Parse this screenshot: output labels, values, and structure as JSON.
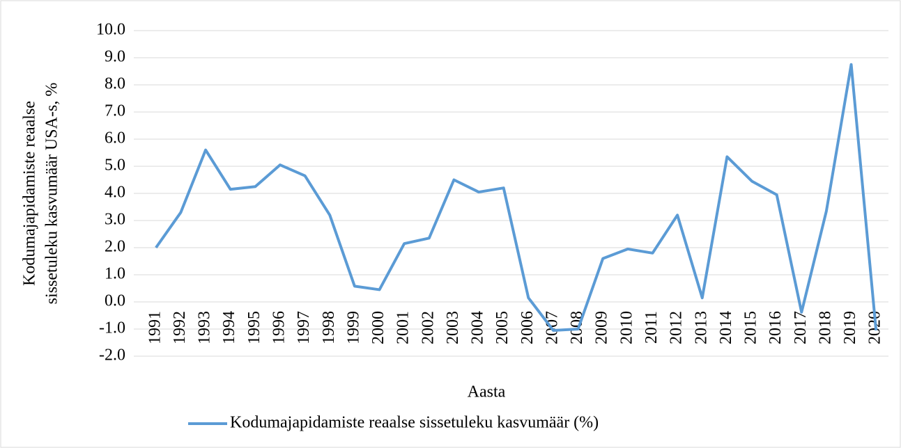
{
  "chart_data": {
    "type": "line",
    "ylabel": [
      "Kodumajapidamiste  reaalse",
      "sissetuleku kasvumäär USA-s, %"
    ],
    "xlabel": "Aasta",
    "categories": [
      "1991",
      "1992",
      "1993",
      "1994",
      "1995",
      "1996",
      "1997",
      "1998",
      "1999",
      "2000",
      "2001",
      "2002",
      "2003",
      "2004",
      "2005",
      "2006",
      "2007",
      "2008",
      "2009",
      "2010",
      "2011",
      "2012",
      "2013",
      "2014",
      "2015",
      "2016",
      "2017",
      "2018",
      "2019",
      "2020"
    ],
    "series": [
      {
        "name": "Kodumajapidamiste  reaalse sissetuleku kasvumäär (%)",
        "color": "#5b9bd5",
        "values": [
          2.0,
          3.3,
          5.6,
          4.15,
          4.25,
          5.05,
          4.65,
          3.2,
          0.58,
          0.45,
          2.15,
          2.35,
          4.5,
          4.05,
          4.2,
          0.15,
          -1.05,
          -1.0,
          1.6,
          1.95,
          1.8,
          3.2,
          0.15,
          5.35,
          4.45,
          3.95,
          -0.38,
          3.35,
          8.75,
          -1.05
        ]
      }
    ],
    "ylim": [
      -2,
      10
    ],
    "yticks": [
      {
        "value": -2,
        "label": "-2.0"
      },
      {
        "value": -1,
        "label": "-1.0"
      },
      {
        "value": 0,
        "label": "0.0"
      },
      {
        "value": 1,
        "label": "1.0"
      },
      {
        "value": 2,
        "label": "2.0"
      },
      {
        "value": 3,
        "label": "3.0"
      },
      {
        "value": 4,
        "label": "4.0"
      },
      {
        "value": 5,
        "label": "5.0"
      },
      {
        "value": 6,
        "label": "6.0"
      },
      {
        "value": 7,
        "label": "7.0"
      },
      {
        "value": 8,
        "label": "8.0"
      },
      {
        "value": 9,
        "label": "9.0"
      },
      {
        "value": 10,
        "label": "10.0"
      }
    ],
    "grid": true,
    "legend": "bottom"
  }
}
